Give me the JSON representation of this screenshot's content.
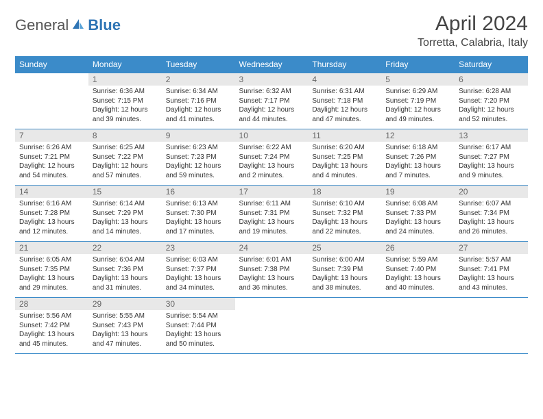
{
  "logo": {
    "general": "General",
    "blue": "Blue"
  },
  "title": "April 2024",
  "location": "Torretta, Calabria, Italy",
  "colors": {
    "header_bg": "#3b8bc9",
    "header_text": "#ffffff",
    "border": "#3b8bc9",
    "daynum_bg": "#e8e8e8",
    "logo_blue": "#2f75b5"
  },
  "weekdays": [
    "Sunday",
    "Monday",
    "Tuesday",
    "Wednesday",
    "Thursday",
    "Friday",
    "Saturday"
  ],
  "weeks": [
    [
      {
        "n": "",
        "lines": []
      },
      {
        "n": "1",
        "lines": [
          "Sunrise: 6:36 AM",
          "Sunset: 7:15 PM",
          "Daylight: 12 hours and 39 minutes."
        ]
      },
      {
        "n": "2",
        "lines": [
          "Sunrise: 6:34 AM",
          "Sunset: 7:16 PM",
          "Daylight: 12 hours and 41 minutes."
        ]
      },
      {
        "n": "3",
        "lines": [
          "Sunrise: 6:32 AM",
          "Sunset: 7:17 PM",
          "Daylight: 12 hours and 44 minutes."
        ]
      },
      {
        "n": "4",
        "lines": [
          "Sunrise: 6:31 AM",
          "Sunset: 7:18 PM",
          "Daylight: 12 hours and 47 minutes."
        ]
      },
      {
        "n": "5",
        "lines": [
          "Sunrise: 6:29 AM",
          "Sunset: 7:19 PM",
          "Daylight: 12 hours and 49 minutes."
        ]
      },
      {
        "n": "6",
        "lines": [
          "Sunrise: 6:28 AM",
          "Sunset: 7:20 PM",
          "Daylight: 12 hours and 52 minutes."
        ]
      }
    ],
    [
      {
        "n": "7",
        "lines": [
          "Sunrise: 6:26 AM",
          "Sunset: 7:21 PM",
          "Daylight: 12 hours and 54 minutes."
        ]
      },
      {
        "n": "8",
        "lines": [
          "Sunrise: 6:25 AM",
          "Sunset: 7:22 PM",
          "Daylight: 12 hours and 57 minutes."
        ]
      },
      {
        "n": "9",
        "lines": [
          "Sunrise: 6:23 AM",
          "Sunset: 7:23 PM",
          "Daylight: 12 hours and 59 minutes."
        ]
      },
      {
        "n": "10",
        "lines": [
          "Sunrise: 6:22 AM",
          "Sunset: 7:24 PM",
          "Daylight: 13 hours and 2 minutes."
        ]
      },
      {
        "n": "11",
        "lines": [
          "Sunrise: 6:20 AM",
          "Sunset: 7:25 PM",
          "Daylight: 13 hours and 4 minutes."
        ]
      },
      {
        "n": "12",
        "lines": [
          "Sunrise: 6:18 AM",
          "Sunset: 7:26 PM",
          "Daylight: 13 hours and 7 minutes."
        ]
      },
      {
        "n": "13",
        "lines": [
          "Sunrise: 6:17 AM",
          "Sunset: 7:27 PM",
          "Daylight: 13 hours and 9 minutes."
        ]
      }
    ],
    [
      {
        "n": "14",
        "lines": [
          "Sunrise: 6:16 AM",
          "Sunset: 7:28 PM",
          "Daylight: 13 hours and 12 minutes."
        ]
      },
      {
        "n": "15",
        "lines": [
          "Sunrise: 6:14 AM",
          "Sunset: 7:29 PM",
          "Daylight: 13 hours and 14 minutes."
        ]
      },
      {
        "n": "16",
        "lines": [
          "Sunrise: 6:13 AM",
          "Sunset: 7:30 PM",
          "Daylight: 13 hours and 17 minutes."
        ]
      },
      {
        "n": "17",
        "lines": [
          "Sunrise: 6:11 AM",
          "Sunset: 7:31 PM",
          "Daylight: 13 hours and 19 minutes."
        ]
      },
      {
        "n": "18",
        "lines": [
          "Sunrise: 6:10 AM",
          "Sunset: 7:32 PM",
          "Daylight: 13 hours and 22 minutes."
        ]
      },
      {
        "n": "19",
        "lines": [
          "Sunrise: 6:08 AM",
          "Sunset: 7:33 PM",
          "Daylight: 13 hours and 24 minutes."
        ]
      },
      {
        "n": "20",
        "lines": [
          "Sunrise: 6:07 AM",
          "Sunset: 7:34 PM",
          "Daylight: 13 hours and 26 minutes."
        ]
      }
    ],
    [
      {
        "n": "21",
        "lines": [
          "Sunrise: 6:05 AM",
          "Sunset: 7:35 PM",
          "Daylight: 13 hours and 29 minutes."
        ]
      },
      {
        "n": "22",
        "lines": [
          "Sunrise: 6:04 AM",
          "Sunset: 7:36 PM",
          "Daylight: 13 hours and 31 minutes."
        ]
      },
      {
        "n": "23",
        "lines": [
          "Sunrise: 6:03 AM",
          "Sunset: 7:37 PM",
          "Daylight: 13 hours and 34 minutes."
        ]
      },
      {
        "n": "24",
        "lines": [
          "Sunrise: 6:01 AM",
          "Sunset: 7:38 PM",
          "Daylight: 13 hours and 36 minutes."
        ]
      },
      {
        "n": "25",
        "lines": [
          "Sunrise: 6:00 AM",
          "Sunset: 7:39 PM",
          "Daylight: 13 hours and 38 minutes."
        ]
      },
      {
        "n": "26",
        "lines": [
          "Sunrise: 5:59 AM",
          "Sunset: 7:40 PM",
          "Daylight: 13 hours and 40 minutes."
        ]
      },
      {
        "n": "27",
        "lines": [
          "Sunrise: 5:57 AM",
          "Sunset: 7:41 PM",
          "Daylight: 13 hours and 43 minutes."
        ]
      }
    ],
    [
      {
        "n": "28",
        "lines": [
          "Sunrise: 5:56 AM",
          "Sunset: 7:42 PM",
          "Daylight: 13 hours and 45 minutes."
        ]
      },
      {
        "n": "29",
        "lines": [
          "Sunrise: 5:55 AM",
          "Sunset: 7:43 PM",
          "Daylight: 13 hours and 47 minutes."
        ]
      },
      {
        "n": "30",
        "lines": [
          "Sunrise: 5:54 AM",
          "Sunset: 7:44 PM",
          "Daylight: 13 hours and 50 minutes."
        ]
      },
      {
        "n": "",
        "lines": []
      },
      {
        "n": "",
        "lines": []
      },
      {
        "n": "",
        "lines": []
      },
      {
        "n": "",
        "lines": []
      }
    ]
  ]
}
